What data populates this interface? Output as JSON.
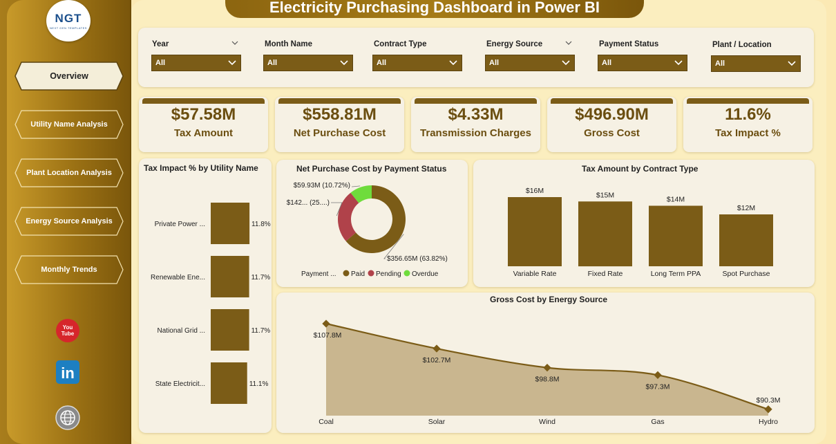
{
  "title": "Electricity Purchasing Dashboard in Power BI",
  "logo": {
    "text": "NGT",
    "subtext": "NEXT GEN TEMPLATES"
  },
  "nav": [
    {
      "label": "Overview",
      "active": true
    },
    {
      "label": "Utility Name Analysis",
      "active": false
    },
    {
      "label": "Plant Location Analysis",
      "active": false
    },
    {
      "label": "Energy Source Analysis",
      "active": false
    },
    {
      "label": "Monthly Trends",
      "active": false
    }
  ],
  "social": {
    "youtube": "You Tube",
    "linkedin": "in"
  },
  "slicers": [
    {
      "label": "Year",
      "value": "All"
    },
    {
      "label": "Month Name",
      "value": "All"
    },
    {
      "label": "Contract Type",
      "value": "All"
    },
    {
      "label": "Energy Source",
      "value": "All"
    },
    {
      "label": "Payment Status",
      "value": "All"
    },
    {
      "label": "Plant / Location",
      "value": "All"
    }
  ],
  "kpis": [
    {
      "value": "$57.58M",
      "label": "Tax Amount"
    },
    {
      "value": "$558.81M",
      "label": "Net Purchase Cost"
    },
    {
      "value": "$4.33M",
      "label": "Transmission Charges"
    },
    {
      "value": "$496.90M",
      "label": "Gross Cost"
    },
    {
      "value": "11.6%",
      "label": "Tax Impact %"
    }
  ],
  "colors": {
    "bar": "#7b5c17",
    "paid": "#7b5c17",
    "pending": "#b0424a",
    "overdue": "#6fdc3c",
    "area": "#c9b68f",
    "line": "#7b5c17"
  },
  "chart_data": [
    {
      "type": "bar",
      "orientation": "horizontal",
      "title": "Tax Impact % by Utility Name",
      "categories": [
        "Private Power ...",
        "Renewable Ene...",
        "National Grid ...",
        "State Electricit..."
      ],
      "values": [
        11.8,
        11.7,
        11.7,
        11.1
      ],
      "labels": [
        "11.8%",
        "11.7%",
        "11.7%",
        "11.1%"
      ],
      "xlim": [
        0,
        12
      ]
    },
    {
      "type": "pie",
      "title": "Net Purchase Cost by Payment Status",
      "legend_title": "Payment ...",
      "categories": [
        "Paid",
        "Pending",
        "Overdue"
      ],
      "values": [
        356.65,
        142.23,
        59.93
      ],
      "labels": [
        "$356.65M (63.82%)",
        "$142... (25....)",
        "$59.93M (10.72%)"
      ]
    },
    {
      "type": "bar",
      "title": "Tax Amount by Contract Type",
      "categories": [
        "Variable Rate",
        "Fixed Rate",
        "Long Term PPA",
        "Spot Purchase"
      ],
      "values": [
        16,
        15,
        14,
        12
      ],
      "labels": [
        "$16M",
        "$15M",
        "$14M",
        "$12M"
      ],
      "ylim": [
        0,
        16
      ]
    },
    {
      "type": "area",
      "title": "Gross Cost by Energy Source",
      "categories": [
        "Coal",
        "Solar",
        "Wind",
        "Gas",
        "Hydro"
      ],
      "values": [
        107.8,
        102.7,
        98.8,
        97.3,
        90.3
      ],
      "labels": [
        "$107.8M",
        "$102.7M",
        "$98.8M",
        "$97.3M",
        "$90.3M"
      ],
      "ylim": [
        89,
        108.5
      ]
    }
  ]
}
